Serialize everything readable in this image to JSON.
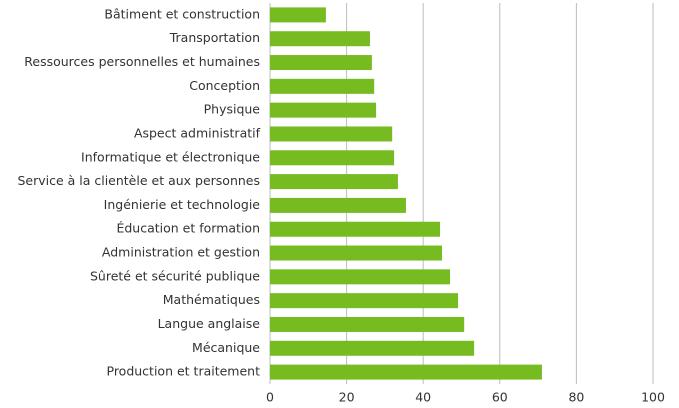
{
  "chart_data": {
    "type": "barh",
    "categories": [
      "Bâtiment et construction",
      "Transportation",
      "Ressources personnelles et humaines",
      "Conception",
      "Physique",
      "Aspect administratif",
      "Informatique et électronique",
      "Service à la clientèle et aux personnes",
      "Ingénierie et technologie",
      "Éducation et formation",
      "Administration et gestion",
      "Sûreté et sécurité publique",
      "Mathématiques",
      "Langue anglaise",
      "Mécanique",
      "Production et traitement"
    ],
    "values": [
      14.6,
      26.1,
      26.6,
      27.2,
      27.7,
      31.9,
      32.4,
      33.4,
      35.5,
      44.4,
      44.9,
      47,
      49.1,
      50.7,
      53.3,
      71
    ],
    "color": "#76bc21",
    "xlim": [
      0,
      100
    ],
    "xticks": [
      0,
      20,
      40,
      60,
      80,
      100
    ],
    "grid": true
  }
}
